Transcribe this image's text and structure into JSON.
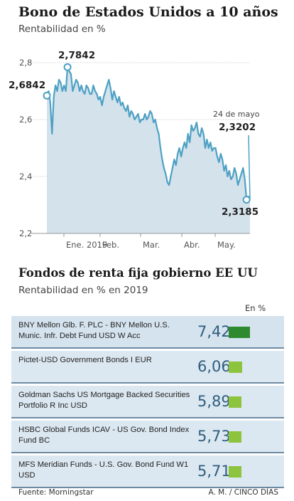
{
  "header": {
    "title": "Bono de Estados Unidos a 10 años",
    "subtitle": "Rentabilidad en %"
  },
  "chart_data": [
    {
      "type": "area",
      "title": "Bono de Estados Unidos a 10 años",
      "ylabel": "Rentabilidad en %",
      "ylim": [
        2.2,
        2.8
      ],
      "yticks": [
        "2,2",
        "2,4",
        "2,6",
        "2,8"
      ],
      "xticks": [
        "Ene. 2019",
        "Feb.",
        "Mar.",
        "Abr.",
        "May."
      ],
      "grid": true,
      "colors": {
        "line": "#4ea1c4",
        "fill": "#cfdfea"
      },
      "annotations": {
        "start": "2,6842",
        "max": "2,7842",
        "min": "2,3185",
        "last_date": "24 de mayo",
        "last": "2,3202"
      },
      "series": [
        {
          "values": [
            2.6842,
            2.7,
            2.66,
            2.55,
            2.68,
            2.72,
            2.7,
            2.74,
            2.73,
            2.7,
            2.72,
            2.7,
            2.7842,
            2.77,
            2.76,
            2.7,
            2.72,
            2.74,
            2.73,
            2.7,
            2.72,
            2.7,
            2.69,
            2.72,
            2.71,
            2.69,
            2.69,
            2.72,
            2.7,
            2.69,
            2.67,
            2.68,
            2.65,
            2.68,
            2.7,
            2.72,
            2.74,
            2.71,
            2.67,
            2.7,
            2.68,
            2.66,
            2.68,
            2.65,
            2.66,
            2.64,
            2.63,
            2.65,
            2.61,
            2.63,
            2.62,
            2.6,
            2.61,
            2.62,
            2.59,
            2.6,
            2.6,
            2.62,
            2.6,
            2.61,
            2.63,
            2.62,
            2.59,
            2.6,
            2.57,
            2.55,
            2.5,
            2.46,
            2.43,
            2.41,
            2.38,
            2.37,
            2.4,
            2.43,
            2.46,
            2.44,
            2.48,
            2.5,
            2.47,
            2.5,
            2.52,
            2.5,
            2.55,
            2.52,
            2.58,
            2.56,
            2.57,
            2.59,
            2.55,
            2.54,
            2.57,
            2.55,
            2.5,
            2.53,
            2.5,
            2.52,
            2.49,
            2.5,
            2.5,
            2.47,
            2.45,
            2.48,
            2.46,
            2.42,
            2.44,
            2.4,
            2.42,
            2.39,
            2.4,
            2.43,
            2.41,
            2.37,
            2.39,
            2.41,
            2.43,
            2.39,
            2.3185,
            2.33,
            2.3202
          ]
        }
      ]
    },
    {
      "type": "bar",
      "title": "Fondos de renta fija gobierno EE UU",
      "subtitle": "Rentabilidad en % en 2019",
      "unit_label": "En %",
      "categories": [
        "BNY Mellon Glb. F. PLC - BNY Mellon U.S. Munic. Infr. Debt Fund USD W Acc",
        "Pictet-USD Government Bonds I EUR",
        "Goldman Sachs US Mortgage Backed Securities Portfolio R Inc USD",
        "HSBC Global Funds ICAV - US Gov. Bond Index Fund BC",
        "MFS Meridian Funds - U.S. Gov. Bond Fund W1 USD"
      ],
      "values": [
        7.42,
        6.06,
        5.89,
        5.73,
        5.71
      ],
      "value_labels": [
        "7,42",
        "6,06",
        "5,89",
        "5,73",
        "5,71"
      ],
      "colors": {
        "top": "#2e8a2e",
        "others": "#8cc43e"
      }
    }
  ],
  "funds": {
    "title": "Fondos de renta fija gobierno EE UU",
    "subtitle": "Rentabilidad en % en 2019",
    "unit_label": "En %",
    "rows": [
      {
        "name": "BNY Mellon Glb. F. PLC - BNY Mellon U.S. Munic. Infr. Debt Fund USD W Acc",
        "value": "7,42"
      },
      {
        "name": "Pictet-USD Government Bonds I EUR",
        "value": "6,06"
      },
      {
        "name": "Goldman Sachs US Mortgage Backed Securities Portfolio R Inc USD",
        "value": "5,89"
      },
      {
        "name": "HSBC Global Funds ICAV - US Gov. Bond Index Fund BC",
        "value": "5,73"
      },
      {
        "name": "MFS Meridian Funds - U.S. Gov. Bond Fund W1 USD",
        "value": "5,71"
      }
    ]
  },
  "footer": {
    "source": "Fuente: Morningstar",
    "credit": "A. M. / CINCO DÍAS"
  }
}
